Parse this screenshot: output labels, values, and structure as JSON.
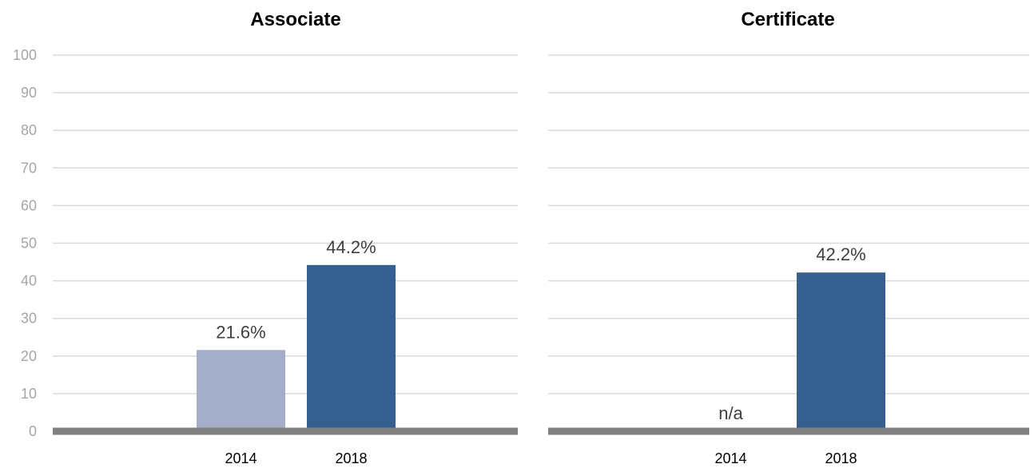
{
  "chart_data": [
    {
      "type": "bar",
      "title": "Associate",
      "categories": [
        "2014",
        "2018"
      ],
      "values": [
        21.6,
        44.2
      ],
      "value_labels": [
        "21.6%",
        "44.2%"
      ],
      "colors": [
        "#a4aec9",
        "#355f91"
      ],
      "ylim": [
        0,
        100
      ],
      "yticks": [
        "0",
        "10",
        "20",
        "30",
        "40",
        "50",
        "60",
        "70",
        "80",
        "90",
        "100"
      ],
      "grid": true
    },
    {
      "type": "bar",
      "title": "Certificate",
      "categories": [
        "2014",
        "2018"
      ],
      "values": [
        null,
        42.2
      ],
      "value_labels": [
        "n/a",
        "42.2%"
      ],
      "colors": [
        "#a4aec9",
        "#355f91"
      ],
      "ylim": [
        0,
        100
      ],
      "grid": true
    }
  ]
}
